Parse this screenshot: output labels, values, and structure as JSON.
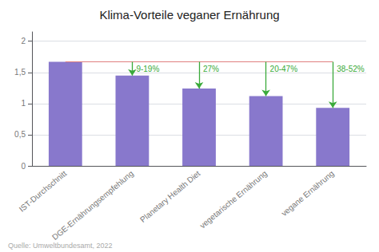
{
  "chart_data": {
    "type": "bar",
    "title": "Klima-Vorteile veganer Ernährung",
    "categories": [
      "IST-Durchschnitt",
      "DGE-Ernährungsempfehlung",
      "Planetary Health Diet",
      "vegetarische Ernährung",
      "vegane Ernährung"
    ],
    "values": [
      1.67,
      1.45,
      1.24,
      1.12,
      0.93
    ],
    "color": "#8878cc",
    "ylim": [
      0,
      2.15
    ],
    "yticks": [
      0,
      {
        "value": 0.5,
        "label": "0,5"
      },
      1,
      {
        "value": 1.5,
        "label": "1,5"
      },
      2
    ],
    "grid": true,
    "reference_line": {
      "value": 1.67,
      "color": "#e08080"
    },
    "annotations": [
      {
        "category": "DGE-Ernährungsempfehlung",
        "label": "9-19%",
        "from": 1.67,
        "to": 1.45,
        "color": "#3aaa3a"
      },
      {
        "category": "Planetary Health Diet",
        "label": "27%",
        "from": 1.67,
        "to": 1.24,
        "color": "#3aaa3a"
      },
      {
        "category": "vegetarische Ernährung",
        "label": "20-47%",
        "from": 1.67,
        "to": 1.12,
        "color": "#3aaa3a"
      },
      {
        "category": "vegane Ernährung",
        "label": "38-52%",
        "from": 1.67,
        "to": 0.93,
        "color": "#3aaa3a"
      }
    ],
    "source": "Quelle: Umweltbundesamt, 2022"
  }
}
